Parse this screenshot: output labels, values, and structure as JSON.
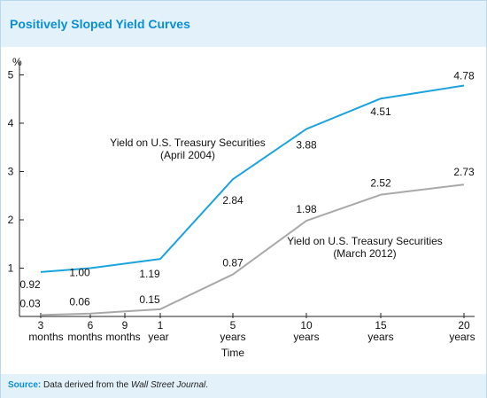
{
  "title": "Positively Sloped Yield Curves",
  "source": {
    "label": "Source:",
    "text_prefix": "Data derived from the ",
    "text_italic": "Wall Street Journal",
    "text_suffix": "."
  },
  "chart_data": {
    "type": "line",
    "ylabel": "%",
    "xlabel": "Time",
    "ylim": [
      0,
      5
    ],
    "y_ticks": [
      "1",
      "2",
      "3",
      "4",
      "5"
    ],
    "x_ticks": [
      [
        "3",
        "months"
      ],
      [
        "6",
        "months"
      ],
      [
        "9",
        "months"
      ],
      [
        "1",
        "year"
      ],
      [
        "5",
        "years"
      ],
      [
        "10",
        "years"
      ],
      [
        "15",
        "years"
      ],
      [
        "20",
        "years"
      ]
    ],
    "x_label_under": "Time",
    "series": [
      {
        "name": "Yield on U.S. Treasury Securities (April 2004)",
        "label_lines": [
          "Yield on U.S. Treasury Securities",
          "(April 2004)"
        ],
        "color": "#1aa3df",
        "points": [
          {
            "x": "3 months",
            "y": 0.92,
            "label": "0.92"
          },
          {
            "x": "6 months",
            "y": 1.0,
            "label": "1.00"
          },
          {
            "x": "1 year",
            "y": 1.19,
            "label": "1.19"
          },
          {
            "x": "5 years",
            "y": 2.84,
            "label": "2.84"
          },
          {
            "x": "10 years",
            "y": 3.88,
            "label": "3.88"
          },
          {
            "x": "15 years",
            "y": 4.51,
            "label": "4.51"
          },
          {
            "x": "20 years",
            "y": 4.78,
            "label": "4.78"
          }
        ]
      },
      {
        "name": "Yield on U.S. Treasury Securities (March 2012)",
        "label_lines": [
          "Yield on U.S. Treasury Securities",
          "(March 2012)"
        ],
        "color": "#a9a9a9",
        "points": [
          {
            "x": "3 months",
            "y": 0.03,
            "label": "0.03"
          },
          {
            "x": "6 months",
            "y": 0.06,
            "label": "0.06"
          },
          {
            "x": "1 year",
            "y": 0.15,
            "label": "0.15"
          },
          {
            "x": "5 years",
            "y": 0.87,
            "label": "0.87"
          },
          {
            "x": "10 years",
            "y": 1.98,
            "label": "1.98"
          },
          {
            "x": "15 years",
            "y": 2.52,
            "label": "2.52"
          },
          {
            "x": "20 years",
            "y": 2.73,
            "label": "2.73"
          }
        ]
      }
    ]
  }
}
